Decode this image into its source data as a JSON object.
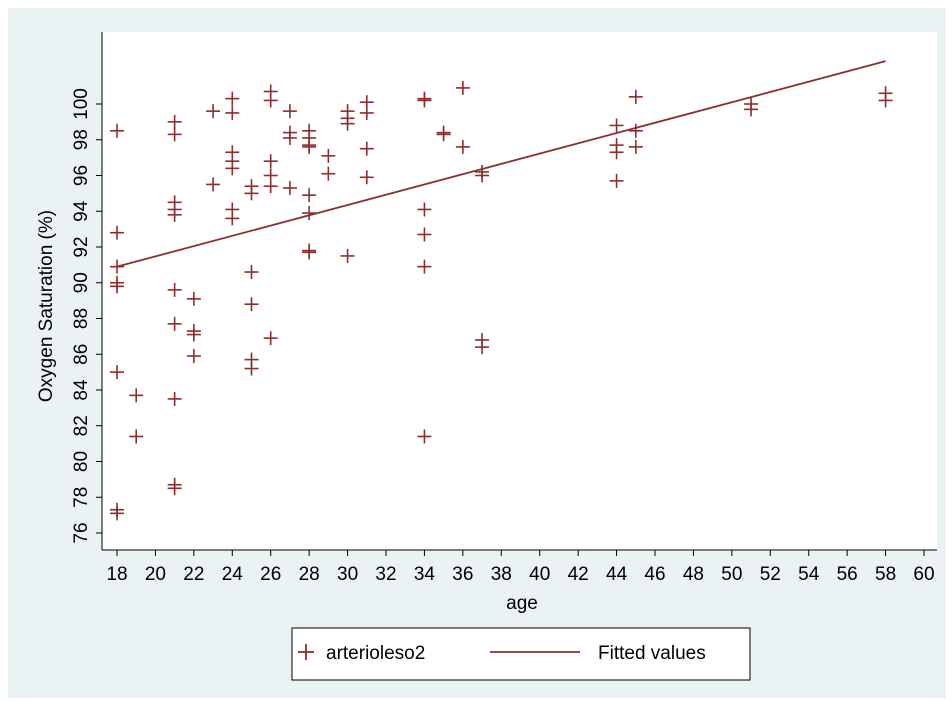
{
  "chart_data": {
    "type": "scatter",
    "xlabel": "age",
    "ylabel": "Oxygen Saturation (%)",
    "xlim": [
      18,
      60
    ],
    "ylim": [
      76,
      100
    ],
    "x_ticks": [
      18,
      20,
      22,
      24,
      26,
      28,
      30,
      32,
      34,
      36,
      38,
      40,
      42,
      44,
      46,
      48,
      50,
      52,
      54,
      56,
      58,
      60
    ],
    "y_ticks": [
      76,
      78,
      80,
      82,
      84,
      86,
      88,
      90,
      92,
      94,
      96,
      98,
      100
    ],
    "grid": false,
    "legend_position": "bottom",
    "series": [
      {
        "name": "arterioleso2",
        "kind": "scatter",
        "marker": "plus",
        "color": "#8b2e2e",
        "points": [
          [
            18,
            98.5
          ],
          [
            18,
            92.8
          ],
          [
            18,
            90.9
          ],
          [
            18,
            90.0
          ],
          [
            18,
            89.8
          ],
          [
            18,
            85.0
          ],
          [
            18,
            77.3
          ],
          [
            18,
            77.1
          ],
          [
            19,
            83.7
          ],
          [
            19,
            81.4
          ],
          [
            21,
            99.0
          ],
          [
            21,
            98.3
          ],
          [
            21,
            94.5
          ],
          [
            21,
            94.1
          ],
          [
            21,
            93.8
          ],
          [
            21,
            89.6
          ],
          [
            21,
            87.7
          ],
          [
            21,
            83.5
          ],
          [
            21,
            78.7
          ],
          [
            21,
            78.5
          ],
          [
            22,
            89.1
          ],
          [
            22,
            87.3
          ],
          [
            22,
            87.1
          ],
          [
            22,
            85.9
          ],
          [
            23,
            99.6
          ],
          [
            23,
            95.5
          ],
          [
            24,
            100.3
          ],
          [
            24,
            99.5
          ],
          [
            24,
            97.3
          ],
          [
            24,
            96.8
          ],
          [
            24,
            96.4
          ],
          [
            24,
            94.1
          ],
          [
            24,
            93.6
          ],
          [
            25,
            95.4
          ],
          [
            25,
            95.0
          ],
          [
            25,
            90.6
          ],
          [
            25,
            88.8
          ],
          [
            25,
            85.7
          ],
          [
            25,
            85.2
          ],
          [
            26,
            100.7
          ],
          [
            26,
            100.2
          ],
          [
            26,
            96.8
          ],
          [
            26,
            96.0
          ],
          [
            26,
            95.4
          ],
          [
            26,
            86.9
          ],
          [
            27,
            99.6
          ],
          [
            27,
            98.4
          ],
          [
            27,
            98.1
          ],
          [
            27,
            95.3
          ],
          [
            28,
            98.5
          ],
          [
            28,
            98.1
          ],
          [
            28,
            97.7
          ],
          [
            28,
            97.6
          ],
          [
            28,
            94.9
          ],
          [
            28,
            93.9
          ],
          [
            28,
            91.8
          ],
          [
            28,
            91.7
          ],
          [
            29,
            97.1
          ],
          [
            29,
            96.1
          ],
          [
            30,
            99.6
          ],
          [
            30,
            99.2
          ],
          [
            30,
            98.9
          ],
          [
            30,
            91.5
          ],
          [
            31,
            100.1
          ],
          [
            31,
            99.5
          ],
          [
            31,
            97.5
          ],
          [
            31,
            95.9
          ],
          [
            34,
            100.3
          ],
          [
            34,
            100.2
          ],
          [
            34,
            94.1
          ],
          [
            34,
            92.7
          ],
          [
            34,
            90.9
          ],
          [
            34,
            81.4
          ],
          [
            35,
            98.4
          ],
          [
            35,
            98.3
          ],
          [
            36,
            100.9
          ],
          [
            36,
            97.6
          ],
          [
            37,
            96.2
          ],
          [
            37,
            96.0
          ],
          [
            37,
            86.8
          ],
          [
            37,
            86.4
          ],
          [
            44,
            98.8
          ],
          [
            44,
            97.7
          ],
          [
            44,
            97.3
          ],
          [
            44,
            95.7
          ],
          [
            45,
            100.4
          ],
          [
            45,
            98.5
          ],
          [
            45,
            97.6
          ],
          [
            51,
            100.0
          ],
          [
            51,
            99.7
          ],
          [
            58,
            100.6
          ],
          [
            58,
            100.2
          ]
        ]
      },
      {
        "name": "Fitted values",
        "kind": "line",
        "color": "#8b2e2e",
        "points": [
          [
            18,
            90.9
          ],
          [
            58,
            102.4
          ]
        ]
      }
    ]
  }
}
